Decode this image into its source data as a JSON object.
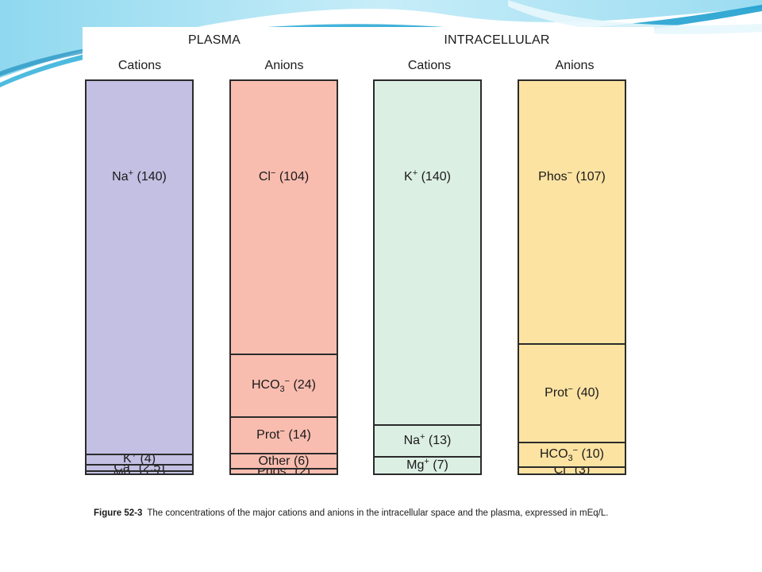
{
  "figure": {
    "groups": [
      {
        "title": "PLASMA"
      },
      {
        "title": "INTRACELLULAR"
      }
    ],
    "columns": [
      {
        "group": "PLASMA",
        "heading": "Cations",
        "color": "#c3c0e3",
        "segments": [
          {
            "ion": "Na",
            "charge": "+",
            "value": 140,
            "label": "(140)"
          },
          {
            "ion": "K",
            "charge": "+",
            "value": 4,
            "label": "(4)"
          },
          {
            "ion": "Ca",
            "charge": "+",
            "value": 2.5,
            "label": "(2.5)"
          },
          {
            "ion": "Mg",
            "charge": "+",
            "value": 1.1,
            "label": "(1.1)"
          }
        ]
      },
      {
        "group": "PLASMA",
        "heading": "Anions",
        "color": "#f9bdb0",
        "segments": [
          {
            "ion": "Cl",
            "charge": "−",
            "value": 104,
            "label": "(104)"
          },
          {
            "ion": "HCO",
            "sub": "3",
            "charge": "−",
            "value": 24,
            "label": "(24)"
          },
          {
            "ion": "Prot",
            "charge": "−",
            "value": 14,
            "label": "(14)"
          },
          {
            "ion": "Other",
            "charge": "",
            "value": 6,
            "label": "(6)"
          },
          {
            "ion": "Phos",
            "charge": "−",
            "value": 2,
            "label": "(2)"
          }
        ]
      },
      {
        "group": "INTRACELLULAR",
        "heading": "Cations",
        "color": "#dcefe3",
        "segments": [
          {
            "ion": "K",
            "charge": "+",
            "value": 140,
            "label": "(140)"
          },
          {
            "ion": "Na",
            "charge": "+",
            "value": 13,
            "label": "(13)"
          },
          {
            "ion": "Mg",
            "charge": "+",
            "value": 7,
            "label": "(7)"
          }
        ]
      },
      {
        "group": "INTRACELLULAR",
        "heading": "Anions",
        "color": "#fce3a2",
        "segments": [
          {
            "ion": "Phos",
            "charge": "−",
            "value": 107,
            "label": "(107)"
          },
          {
            "ion": "Prot",
            "charge": "−",
            "value": 40,
            "label": "(40)"
          },
          {
            "ion": "HCO",
            "sub": "3",
            "charge": "−",
            "value": 10,
            "label": "(10)"
          },
          {
            "ion": "Cl",
            "charge": "−",
            "value": 3,
            "label": "(3)"
          }
        ]
      }
    ],
    "caption": {
      "label": "Figure 52-3",
      "text": "The concentrations of the major cations and anions in the intracellular space and the plasma, expressed in mEq/L."
    }
  },
  "theme": {
    "swoosh_light": "#bfe8f4",
    "swoosh_mid": "#7fd0ea",
    "swoosh_dark": "#2aa7d3",
    "border": "#2b2b2b"
  }
}
